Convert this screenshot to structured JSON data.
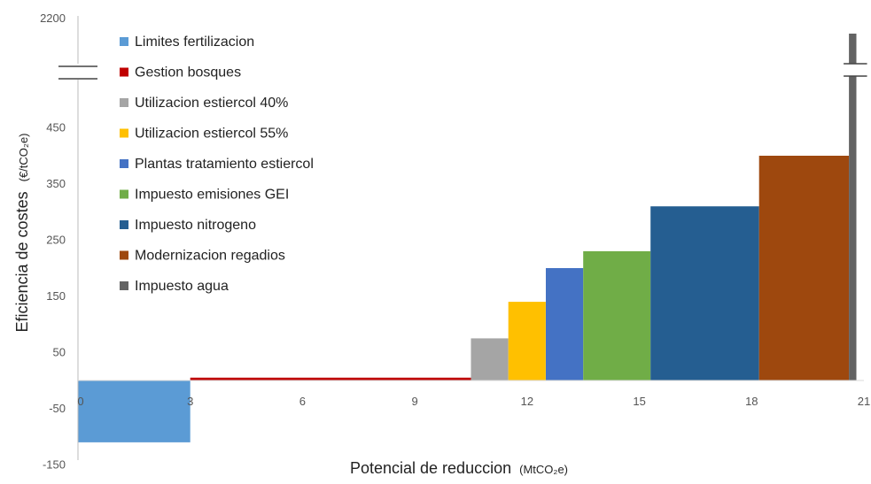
{
  "chart_data": {
    "type": "bar",
    "subtype": "marginal-abatement-cost-curve",
    "title": "",
    "xlabel": "Potencial de reduccion",
    "xlabel_unit": "(MtCO₂e)",
    "ylabel": "Eficiencia de costes",
    "ylabel_unit": "(€/tCO₂e)",
    "xticks": [
      "0",
      "3",
      "6",
      "9",
      "12",
      "15",
      "18",
      "21"
    ],
    "yticks": [
      "-150",
      "-50",
      "50",
      "150",
      "250",
      "350",
      "450",
      "2200"
    ],
    "ylim": [
      -150,
      2200
    ],
    "y_axis_break": {
      "lower_max": 530,
      "upper_min": 2200
    },
    "legend_position": "top-left",
    "grid": false,
    "series": [
      {
        "name": "Limites fertilizacion",
        "x_start": 0,
        "x_end": 3,
        "value": -110,
        "color": "#5b9bd5"
      },
      {
        "name": "Gestion bosques",
        "x_start": 3,
        "x_end": 10.5,
        "value": 5,
        "color": "#c00000"
      },
      {
        "name": "Utilizacion estiercol 40%",
        "x_start": 10.5,
        "x_end": 11.5,
        "value": 75,
        "color": "#a5a5a5"
      },
      {
        "name": "Utilizacion estiercol 55%",
        "x_start": 11.5,
        "x_end": 12.5,
        "value": 140,
        "color": "#ffc000"
      },
      {
        "name": "Plantas tratamiento estiercol",
        "x_start": 12.5,
        "x_end": 13.5,
        "value": 200,
        "color": "#4472c4"
      },
      {
        "name": "Impuesto emisiones GEI",
        "x_start": 13.5,
        "x_end": 15.3,
        "value": 230,
        "color": "#70ad47"
      },
      {
        "name": "Impuesto nitrogeno",
        "x_start": 15.3,
        "x_end": 18.2,
        "value": 310,
        "color": "#255e91"
      },
      {
        "name": "Modernizacion regadios",
        "x_start": 18.2,
        "x_end": 20.6,
        "value": 400,
        "color": "#9e480e"
      },
      {
        "name": "Impuesto agua",
        "x_start": 20.6,
        "x_end": 20.8,
        "value": 2200,
        "color": "#636363"
      }
    ]
  }
}
